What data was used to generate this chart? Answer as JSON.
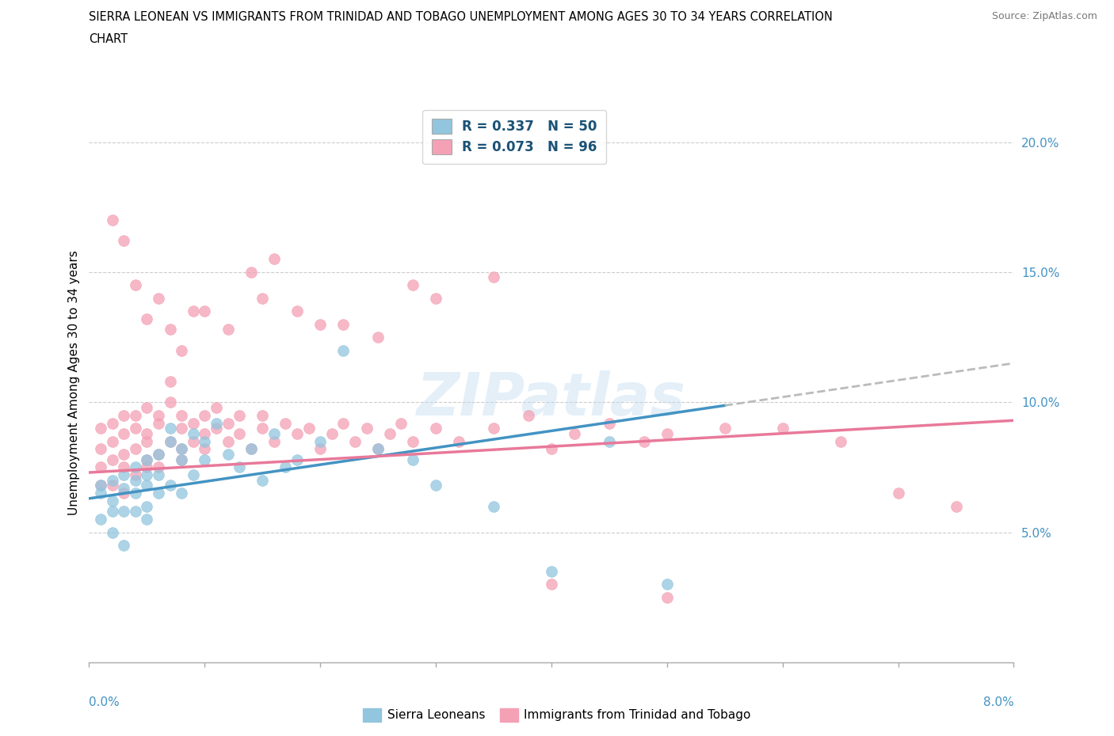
{
  "title_line1": "SIERRA LEONEAN VS IMMIGRANTS FROM TRINIDAD AND TOBAGO UNEMPLOYMENT AMONG AGES 30 TO 34 YEARS CORRELATION",
  "title_line2": "CHART",
  "source_text": "Source: ZipAtlas.com",
  "ylabel": "Unemployment Among Ages 30 to 34 years",
  "y_ticks": [
    0.05,
    0.1,
    0.15,
    0.2
  ],
  "y_tick_labels": [
    "5.0%",
    "10.0%",
    "15.0%",
    "20.0%"
  ],
  "x_min": 0.0,
  "x_max": 0.08,
  "y_min": 0.0,
  "y_max": 0.215,
  "blue_R": 0.337,
  "blue_N": 50,
  "pink_R": 0.073,
  "pink_N": 96,
  "blue_scatter_color": "#92C5DE",
  "pink_scatter_color": "#F4A0B5",
  "blue_line_color": "#4393C3",
  "pink_line_color": "#E8799A",
  "dash_line_color": "#BBBBBB",
  "legend_text_color": "#1A5276",
  "watermark_color": "#C5DCF0",
  "blue_line_intercept": 0.063,
  "blue_line_slope": 0.65,
  "pink_line_intercept": 0.073,
  "pink_line_slope": 0.25,
  "blue_scatter_x": [
    0.001,
    0.001,
    0.001,
    0.002,
    0.002,
    0.002,
    0.002,
    0.003,
    0.003,
    0.003,
    0.003,
    0.004,
    0.004,
    0.004,
    0.004,
    0.005,
    0.005,
    0.005,
    0.005,
    0.005,
    0.006,
    0.006,
    0.006,
    0.007,
    0.007,
    0.007,
    0.008,
    0.008,
    0.008,
    0.009,
    0.009,
    0.01,
    0.01,
    0.011,
    0.012,
    0.013,
    0.014,
    0.015,
    0.016,
    0.017,
    0.018,
    0.02,
    0.022,
    0.025,
    0.028,
    0.03,
    0.035,
    0.04,
    0.045,
    0.05
  ],
  "blue_scatter_y": [
    0.065,
    0.068,
    0.055,
    0.058,
    0.07,
    0.062,
    0.05,
    0.067,
    0.072,
    0.058,
    0.045,
    0.065,
    0.07,
    0.058,
    0.075,
    0.068,
    0.06,
    0.072,
    0.055,
    0.078,
    0.08,
    0.065,
    0.072,
    0.085,
    0.068,
    0.09,
    0.078,
    0.082,
    0.065,
    0.088,
    0.072,
    0.085,
    0.078,
    0.092,
    0.08,
    0.075,
    0.082,
    0.07,
    0.088,
    0.075,
    0.078,
    0.085,
    0.12,
    0.082,
    0.078,
    0.068,
    0.06,
    0.035,
    0.085,
    0.03
  ],
  "pink_scatter_x": [
    0.001,
    0.001,
    0.001,
    0.001,
    0.002,
    0.002,
    0.002,
    0.002,
    0.003,
    0.003,
    0.003,
    0.003,
    0.003,
    0.004,
    0.004,
    0.004,
    0.004,
    0.005,
    0.005,
    0.005,
    0.005,
    0.005,
    0.006,
    0.006,
    0.006,
    0.006,
    0.007,
    0.007,
    0.007,
    0.008,
    0.008,
    0.008,
    0.008,
    0.009,
    0.009,
    0.01,
    0.01,
    0.01,
    0.011,
    0.011,
    0.012,
    0.012,
    0.013,
    0.013,
    0.014,
    0.015,
    0.015,
    0.016,
    0.017,
    0.018,
    0.019,
    0.02,
    0.021,
    0.022,
    0.023,
    0.024,
    0.025,
    0.026,
    0.027,
    0.028,
    0.03,
    0.032,
    0.035,
    0.038,
    0.04,
    0.042,
    0.045,
    0.048,
    0.05,
    0.055,
    0.06,
    0.065,
    0.07,
    0.075,
    0.02,
    0.025,
    0.03,
    0.035,
    0.01,
    0.015,
    0.008,
    0.012,
    0.018,
    0.022,
    0.028,
    0.005,
    0.007,
    0.009,
    0.006,
    0.004,
    0.003,
    0.002,
    0.014,
    0.016,
    0.04,
    0.05
  ],
  "pink_scatter_y": [
    0.068,
    0.075,
    0.082,
    0.09,
    0.078,
    0.085,
    0.092,
    0.068,
    0.095,
    0.075,
    0.088,
    0.08,
    0.065,
    0.09,
    0.082,
    0.072,
    0.095,
    0.085,
    0.098,
    0.075,
    0.088,
    0.078,
    0.092,
    0.08,
    0.095,
    0.075,
    0.1,
    0.085,
    0.108,
    0.09,
    0.082,
    0.095,
    0.078,
    0.092,
    0.085,
    0.088,
    0.095,
    0.082,
    0.09,
    0.098,
    0.085,
    0.092,
    0.088,
    0.095,
    0.082,
    0.09,
    0.095,
    0.085,
    0.092,
    0.088,
    0.09,
    0.082,
    0.088,
    0.092,
    0.085,
    0.09,
    0.082,
    0.088,
    0.092,
    0.085,
    0.09,
    0.085,
    0.09,
    0.095,
    0.082,
    0.088,
    0.092,
    0.085,
    0.088,
    0.09,
    0.09,
    0.085,
    0.065,
    0.06,
    0.13,
    0.125,
    0.14,
    0.148,
    0.135,
    0.14,
    0.12,
    0.128,
    0.135,
    0.13,
    0.145,
    0.132,
    0.128,
    0.135,
    0.14,
    0.145,
    0.162,
    0.17,
    0.15,
    0.155,
    0.03,
    0.025
  ]
}
